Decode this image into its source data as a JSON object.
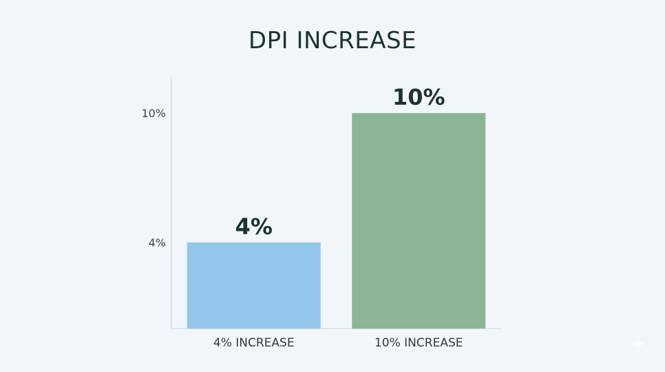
{
  "chart_data": {
    "type": "bar",
    "title": "DPI INCREASE",
    "categories": [
      "4% INCREASE",
      "10% INCREASE"
    ],
    "values": [
      4,
      10
    ],
    "data_labels": [
      "4%",
      "10%"
    ],
    "yticks": [
      4,
      10
    ],
    "ytick_labels": [
      "4%",
      "10%"
    ],
    "xlabel": "",
    "ylabel": "",
    "ylim": [
      0,
      11.7
    ],
    "grid": false,
    "legend": "none",
    "colors": [
      "#93c6ea",
      "#8bb595"
    ]
  },
  "watermark_icon": "sparkle-icon"
}
